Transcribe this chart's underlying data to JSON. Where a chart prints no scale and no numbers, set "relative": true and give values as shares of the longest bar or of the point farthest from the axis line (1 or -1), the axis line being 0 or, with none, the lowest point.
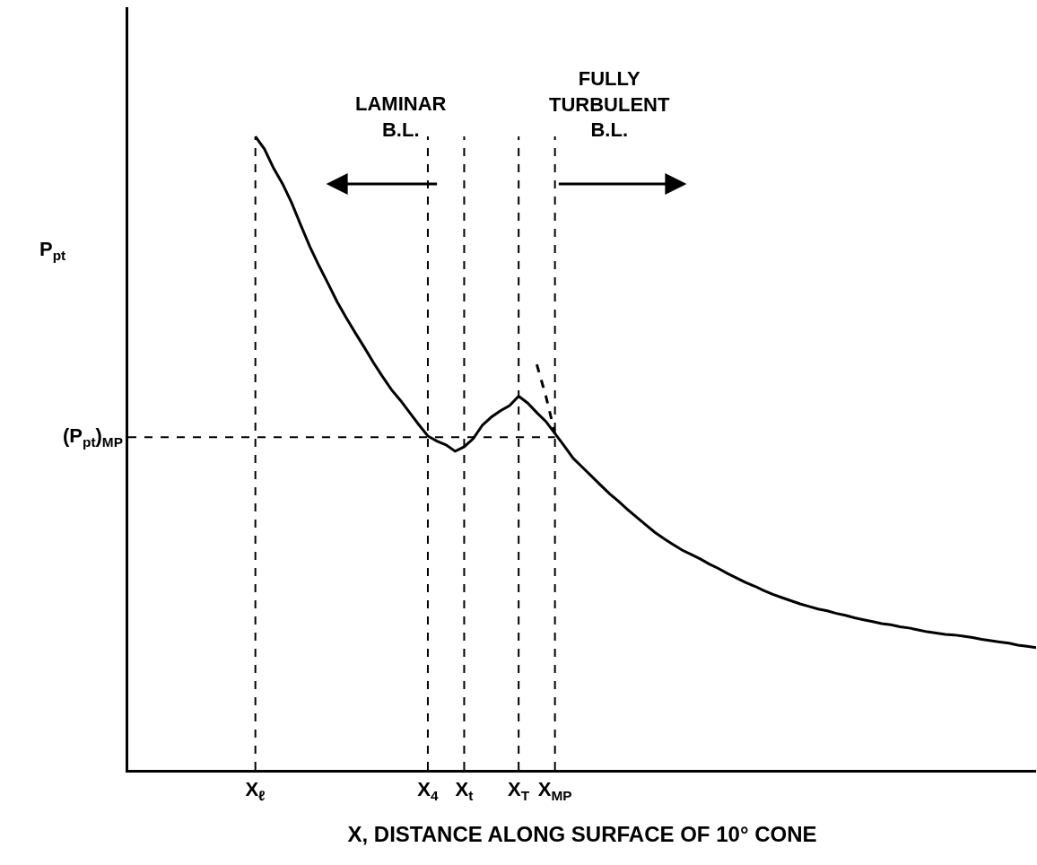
{
  "chart_data": {
    "type": "line",
    "relative": true,
    "xlabel": "X, DISTANCE ALONG SURFACE OF 10° CONE",
    "ylabel": "P$_{pt}$",
    "grid": false,
    "marker": "none",
    "line_style": "solid",
    "categories": [
      null,
      null,
      null,
      null,
      null,
      null,
      null,
      null,
      null,
      null,
      null,
      null,
      null,
      null,
      "X$_{ℓ}$",
      null,
      null,
      null,
      null,
      null,
      null,
      null,
      null,
      null,
      null,
      null,
      null,
      null,
      null,
      null,
      null,
      null,
      null,
      "X$_{4}$",
      null,
      null,
      null,
      "X$_{t}$",
      null,
      null,
      null,
      null,
      null,
      "X$_{T}$",
      null,
      null,
      null,
      "X$_{MP}$",
      null,
      null,
      null,
      null,
      null,
      null,
      null,
      null,
      null,
      null,
      null,
      null,
      null,
      null,
      null,
      null,
      null,
      null,
      null,
      null,
      null,
      null,
      null,
      null,
      null,
      null,
      null,
      null,
      null,
      null,
      null,
      null,
      null,
      null,
      null,
      null,
      null,
      null,
      null,
      null,
      null,
      null,
      null,
      null,
      null,
      null,
      null,
      null,
      null,
      null,
      null,
      null,
      null
    ],
    "series": [
      {
        "color": "#000000",
        "values": [
          null,
          null,
          null,
          null,
          null,
          null,
          null,
          null,
          null,
          null,
          null,
          null,
          null,
          null,
          1.0,
          0.98,
          0.95,
          0.925,
          0.895,
          0.86,
          0.826,
          0.796,
          0.768,
          0.739,
          0.714,
          0.69,
          0.667,
          0.643,
          0.621,
          0.6,
          0.583,
          0.564,
          0.545,
          0.527,
          0.519,
          0.513,
          0.503,
          0.51,
          0.523,
          0.544,
          0.557,
          0.567,
          0.575,
          0.59,
          0.579,
          0.564,
          0.55,
          0.531,
          0.512,
          0.492,
          0.478,
          0.464,
          0.45,
          0.436,
          0.424,
          0.411,
          0.399,
          0.387,
          0.375,
          0.365,
          0.356,
          0.347,
          0.34,
          0.333,
          0.325,
          0.318,
          0.31,
          0.303,
          0.296,
          0.29,
          0.283,
          0.277,
          0.272,
          0.267,
          0.262,
          0.258,
          0.254,
          0.251,
          0.247,
          0.244,
          0.24,
          0.237,
          0.234,
          0.231,
          0.229,
          0.226,
          0.224,
          0.221,
          0.218,
          0.216,
          0.214,
          0.213,
          0.211,
          0.209,
          0.206,
          0.204,
          0.202,
          0.2,
          0.197,
          0.195,
          0.193
        ]
      },
      {
        "color": "#000000",
        "type": "line",
        "line_style": "dashed",
        "values": [
          null,
          null,
          null,
          null,
          null,
          null,
          null,
          null,
          null,
          null,
          null,
          null,
          null,
          null,
          null,
          null,
          null,
          null,
          null,
          null,
          null,
          null,
          null,
          null,
          null,
          null,
          null,
          null,
          null,
          null,
          null,
          null,
          null,
          null,
          null,
          null,
          null,
          null,
          null,
          null,
          null,
          null,
          null,
          null,
          null,
          0.64,
          0.59,
          0.531,
          null,
          null,
          null,
          null,
          null,
          null,
          null,
          null,
          null,
          null,
          null,
          null,
          null,
          null,
          null,
          null,
          null,
          null,
          null,
          null,
          null,
          null,
          null,
          null,
          null,
          null,
          null,
          null,
          null,
          null,
          null,
          null,
          null,
          null,
          null,
          null,
          null,
          null,
          null,
          null,
          null,
          null,
          null,
          null,
          null,
          null,
          null,
          null,
          null,
          null,
          null,
          null,
          null
        ]
      }
    ],
    "ref_lines": [
      {
        "axis": "x",
        "value": "X$_{ℓ}$",
        "line_style": "dashed"
      },
      {
        "axis": "x",
        "value": "X$_{4}$",
        "line_style": "dashed"
      },
      {
        "axis": "x",
        "value": "X$_{t}$",
        "line_style": "dashed"
      },
      {
        "axis": "x",
        "value": "X$_{T}$",
        "line_style": "dashed"
      },
      {
        "axis": "x",
        "value": "X$_{MP}$",
        "line_style": "dashed"
      },
      {
        "axis": "y",
        "value": 0.525,
        "label": "(P$_{pt}$)$_{MP}$",
        "line_style": "dashed"
      }
    ],
    "annotations": [
      "LAMINAR\nB.L.",
      "FULLY\nTURBULENT\nB.L."
    ]
  }
}
